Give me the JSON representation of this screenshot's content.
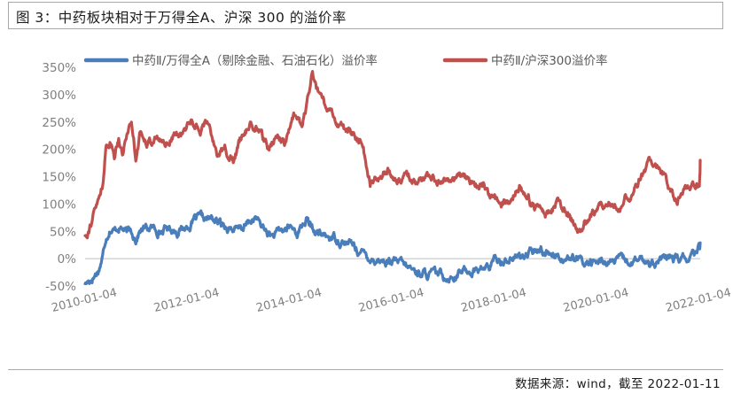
{
  "figure": {
    "title": "图 3：中药板块相对于万得全A、沪深 300 的溢价率",
    "source": "数据来源：wind，截至 2022-01-11"
  },
  "chart_data": {
    "type": "line",
    "xlabel": "",
    "ylabel": "",
    "ylim": [
      -0.5,
      3.5
    ],
    "yticks": [
      -0.5,
      0,
      0.5,
      1,
      1.5,
      2,
      2.5,
      3,
      3.5
    ],
    "ytick_labels": [
      "-50%",
      "0%",
      "50%",
      "100%",
      "150%",
      "200%",
      "250%",
      "300%",
      "350%"
    ],
    "xlim": [
      "2010-01-04",
      "2022-01-11"
    ],
    "xticks": [
      "2010-01-04",
      "2012-01-04",
      "2014-01-04",
      "2016-01-04",
      "2018-01-04",
      "2020-01-04",
      "2022-01-04"
    ],
    "grid": false,
    "legend_position": "top",
    "series": [
      {
        "name": "中药Ⅱ/万得全A（剔除金融、石油石化）溢价率",
        "color": "#4a7ebb",
        "points": [
          [
            "2010-01-04",
            -0.46
          ],
          [
            "2010-02-04",
            -0.4
          ],
          [
            "2010-03-10",
            -0.3
          ],
          [
            "2010-04-10",
            -0.2
          ],
          [
            "2010-05-10",
            0.05
          ],
          [
            "2010-06-01",
            0.4
          ],
          [
            "2010-07-01",
            0.58
          ],
          [
            "2010-08-01",
            0.5
          ],
          [
            "2010-09-01",
            0.6
          ],
          [
            "2010-10-01",
            0.55
          ],
          [
            "2010-11-01",
            0.45
          ],
          [
            "2010-12-01",
            0.5
          ],
          [
            "2011-01-01",
            0.38
          ],
          [
            "2011-02-01",
            0.52
          ],
          [
            "2011-03-01",
            0.55
          ],
          [
            "2011-05-01",
            0.55
          ],
          [
            "2011-07-01",
            0.52
          ],
          [
            "2011-09-01",
            0.56
          ],
          [
            "2011-11-01",
            0.52
          ],
          [
            "2012-01-01",
            0.58
          ],
          [
            "2012-03-01",
            0.72
          ],
          [
            "2012-05-01",
            0.7
          ],
          [
            "2012-07-01",
            0.72
          ],
          [
            "2012-09-01",
            0.62
          ],
          [
            "2012-11-01",
            0.58
          ],
          [
            "2013-01-01",
            0.5
          ],
          [
            "2013-03-01",
            0.62
          ],
          [
            "2013-05-01",
            0.74
          ],
          [
            "2013-07-01",
            0.55
          ],
          [
            "2013-09-01",
            0.4
          ],
          [
            "2013-11-01",
            0.48
          ],
          [
            "2014-01-01",
            0.58
          ],
          [
            "2014-03-01",
            0.48
          ],
          [
            "2014-05-01",
            0.72
          ],
          [
            "2014-06-15",
            0.52
          ],
          [
            "2014-08-01",
            0.44
          ],
          [
            "2014-10-01",
            0.4
          ],
          [
            "2014-12-01",
            0.38
          ],
          [
            "2015-02-01",
            0.3
          ],
          [
            "2015-04-01",
            0.25
          ],
          [
            "2015-06-01",
            0.1
          ],
          [
            "2015-08-01",
            0.02
          ],
          [
            "2015-10-01",
            -0.02
          ],
          [
            "2015-12-01",
            -0.05
          ],
          [
            "2016-03-01",
            -0.1
          ],
          [
            "2016-06-01",
            -0.22
          ],
          [
            "2016-09-01",
            -0.28
          ],
          [
            "2016-12-01",
            -0.3
          ],
          [
            "2017-03-01",
            -0.32
          ],
          [
            "2017-06-01",
            -0.22
          ],
          [
            "2017-09-01",
            -0.2
          ],
          [
            "2017-12-01",
            -0.15
          ],
          [
            "2018-01-01",
            -0.05
          ],
          [
            "2018-03-01",
            -0.02
          ],
          [
            "2018-06-01",
            0.02
          ],
          [
            "2018-09-01",
            0.08
          ],
          [
            "2018-12-01",
            0.15
          ],
          [
            "2019-03-01",
            0.1
          ],
          [
            "2019-06-01",
            0.02
          ],
          [
            "2019-09-01",
            -0.05
          ],
          [
            "2019-12-01",
            -0.08
          ],
          [
            "2020-03-01",
            -0.06
          ],
          [
            "2020-06-01",
            -0.05
          ],
          [
            "2020-09-01",
            -0.07
          ],
          [
            "2020-12-01",
            -0.04
          ],
          [
            "2021-03-01",
            -0.05
          ],
          [
            "2021-06-01",
            0.0
          ],
          [
            "2021-09-01",
            -0.03
          ],
          [
            "2021-11-01",
            0.02
          ],
          [
            "2021-12-15",
            0.05
          ],
          [
            "2022-01-05",
            0.2
          ],
          [
            "2022-01-11",
            0.29
          ]
        ]
      },
      {
        "name": "中药Ⅱ/沪深300溢价率",
        "color": "#c0504d",
        "points": [
          [
            "2010-01-04",
            0.42
          ],
          [
            "2010-02-04",
            0.6
          ],
          [
            "2010-03-10",
            0.85
          ],
          [
            "2010-04-10",
            1.05
          ],
          [
            "2010-05-10",
            1.4
          ],
          [
            "2010-06-01",
            1.95
          ],
          [
            "2010-07-01",
            2.15
          ],
          [
            "2010-08-01",
            1.9
          ],
          [
            "2010-09-01",
            2.25
          ],
          [
            "2010-10-01",
            1.95
          ],
          [
            "2010-11-01",
            2.35
          ],
          [
            "2010-12-01",
            2.5
          ],
          [
            "2011-01-01",
            1.9
          ],
          [
            "2011-02-01",
            2.3
          ],
          [
            "2011-04-01",
            2.15
          ],
          [
            "2011-06-01",
            2.2
          ],
          [
            "2011-08-01",
            2.1
          ],
          [
            "2011-10-01",
            2.3
          ],
          [
            "2011-12-01",
            2.25
          ],
          [
            "2012-02-01",
            2.55
          ],
          [
            "2012-04-01",
            2.35
          ],
          [
            "2012-06-01",
            2.5
          ],
          [
            "2012-08-01",
            1.95
          ],
          [
            "2012-10-01",
            2.0
          ],
          [
            "2012-12-01",
            1.8
          ],
          [
            "2013-02-01",
            2.3
          ],
          [
            "2013-04-01",
            2.45
          ],
          [
            "2013-06-01",
            2.35
          ],
          [
            "2013-08-01",
            1.95
          ],
          [
            "2013-10-01",
            2.3
          ],
          [
            "2013-12-01",
            2.1
          ],
          [
            "2014-02-01",
            2.6
          ],
          [
            "2014-04-01",
            2.4
          ],
          [
            "2014-05-15",
            2.9
          ],
          [
            "2014-06-15",
            3.38
          ],
          [
            "2014-08-01",
            2.95
          ],
          [
            "2014-10-01",
            2.7
          ],
          [
            "2014-12-01",
            2.55
          ],
          [
            "2015-02-01",
            2.35
          ],
          [
            "2015-04-01",
            2.3
          ],
          [
            "2015-06-01",
            2.1
          ],
          [
            "2015-08-01",
            1.4
          ],
          [
            "2015-10-01",
            1.55
          ],
          [
            "2015-12-01",
            1.65
          ],
          [
            "2016-02-01",
            1.35
          ],
          [
            "2016-04-01",
            1.55
          ],
          [
            "2016-07-01",
            1.45
          ],
          [
            "2016-10-01",
            1.4
          ],
          [
            "2017-01-01",
            1.5
          ],
          [
            "2017-04-01",
            1.5
          ],
          [
            "2017-07-01",
            1.4
          ],
          [
            "2017-10-01",
            1.38
          ],
          [
            "2018-01-01",
            1.05
          ],
          [
            "2018-04-01",
            1.0
          ],
          [
            "2018-07-01",
            1.35
          ],
          [
            "2018-10-01",
            1.0
          ],
          [
            "2019-01-01",
            0.75
          ],
          [
            "2019-04-01",
            1.05
          ],
          [
            "2019-07-01",
            0.7
          ],
          [
            "2019-09-01",
            0.55
          ],
          [
            "2019-12-01",
            0.8
          ],
          [
            "2020-03-01",
            1.0
          ],
          [
            "2020-06-01",
            0.95
          ],
          [
            "2020-09-01",
            1.2
          ],
          [
            "2020-12-01",
            1.55
          ],
          [
            "2021-02-01",
            1.8
          ],
          [
            "2021-04-01",
            1.6
          ],
          [
            "2021-06-01",
            1.3
          ],
          [
            "2021-08-01",
            1.1
          ],
          [
            "2021-10-01",
            1.35
          ],
          [
            "2021-12-01",
            1.3
          ],
          [
            "2022-01-05",
            1.4
          ],
          [
            "2022-01-11",
            1.8
          ]
        ]
      }
    ]
  }
}
